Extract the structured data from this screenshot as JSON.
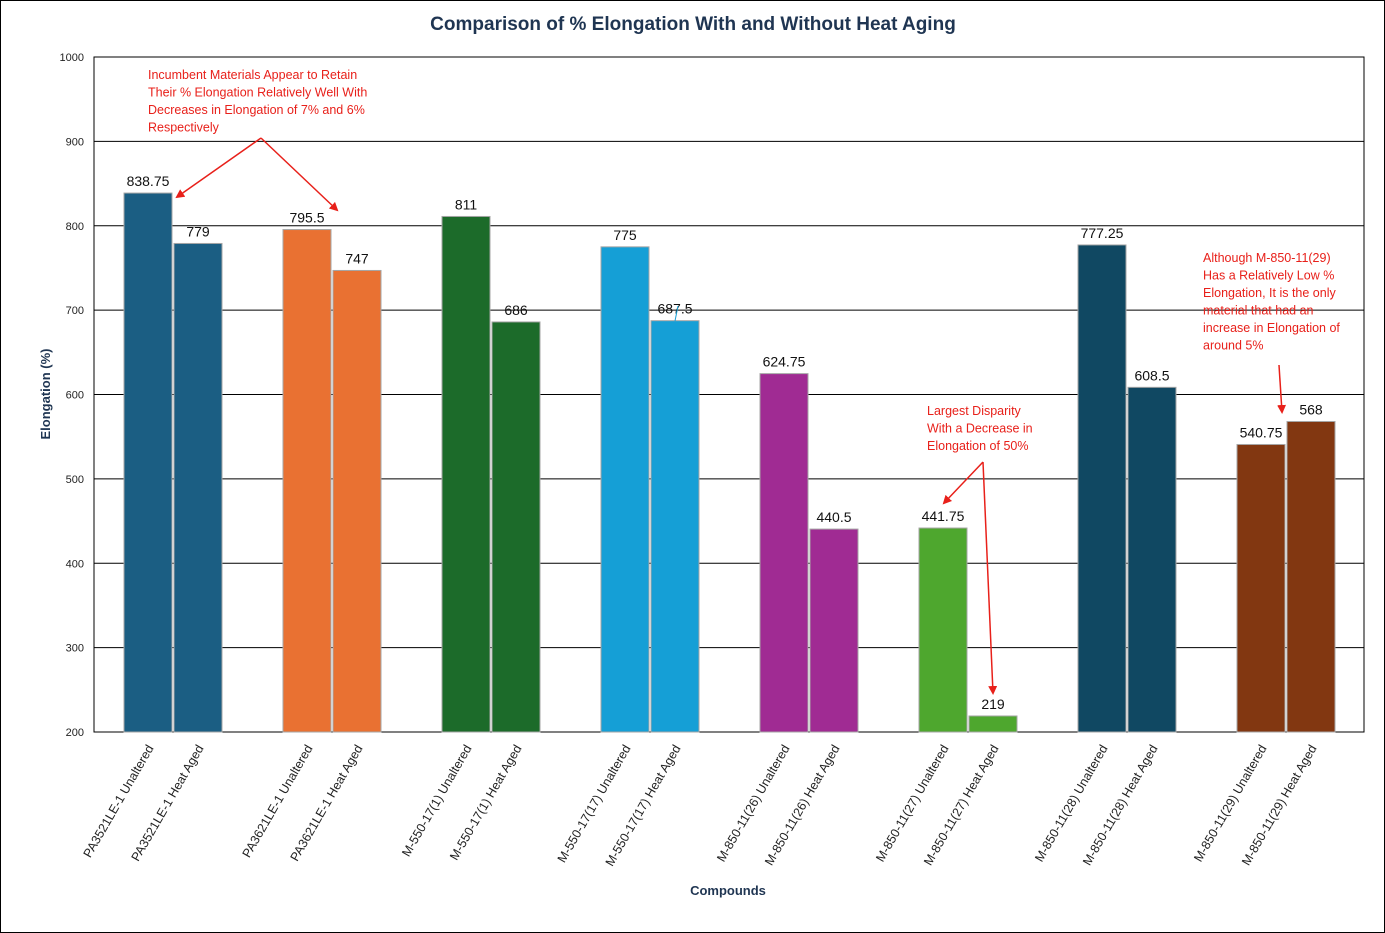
{
  "chart_data": {
    "type": "bar",
    "title": "Comparison of % Elongation With and Without Heat Aging",
    "xlabel": "Compounds",
    "ylabel": "Elongation (%)",
    "ylim": [
      200,
      1000
    ],
    "yticks": [
      200,
      300,
      400,
      500,
      600,
      700,
      800,
      900,
      1000
    ],
    "grid": true,
    "categories": [
      "PA3521LE-1 Unaltered",
      "PA3521LE-1 Heat Aged",
      "PA3621LE-1 Unaltered",
      "PA3621LE-1 Heat Aged",
      "M-550-17(1) Unaltered",
      "M-550-17(1) Heat Aged",
      "M-550-17(17) Unaltered",
      "M-550-17(17) Heat Aged",
      "M-850-11(26) Unaltered",
      "M-850-11(26) Heat Aged",
      "M-850-11(27) Unaltered",
      "M-850-11(27) Heat Aged",
      "M-850-11(28) Unaltered",
      "M-850-11(28) Heat Aged",
      "M-850-11(29) Unaltered",
      "M-850-11(29) Heat Aged"
    ],
    "values": [
      838.75,
      779,
      795.5,
      747,
      811,
      686,
      775,
      687.5,
      624.75,
      440.5,
      441.75,
      219,
      777.25,
      608.5,
      540.75,
      568
    ],
    "data_labels": [
      "838.75",
      "779",
      "795.5",
      "747",
      "811",
      "686",
      "775",
      "687.5",
      "624.75",
      "440.5",
      "441.75",
      "219",
      "777.25",
      "608.5",
      "540.75",
      "568"
    ],
    "colors": [
      "#1b5e83",
      "#1b5e83",
      "#e97132",
      "#e97132",
      "#1c6b2a",
      "#1c6b2a",
      "#159fd6",
      "#159fd6",
      "#a02b93",
      "#a02b93",
      "#4ea72e",
      "#4ea72e",
      "#104862",
      "#104862",
      "#823711",
      "#823711"
    ],
    "annotations": [
      {
        "lines": [
          "Incumbent Materials Appear to Retain",
          "Their % Elongation Relatively Well With",
          "Decreases in Elongation of 7% and 6%",
          "Respectively"
        ]
      },
      {
        "lines": [
          "Largest Disparity",
          "With a Decrease in",
          "Elongation of 50%"
        ]
      },
      {
        "lines": [
          "Although M-850-11(29)",
          "Has a Relatively Low %",
          "Elongation, It is the only",
          "material that had an",
          "increase in Elongation of",
          "around 5%"
        ]
      }
    ],
    "annotation_color": "#e8201a"
  }
}
